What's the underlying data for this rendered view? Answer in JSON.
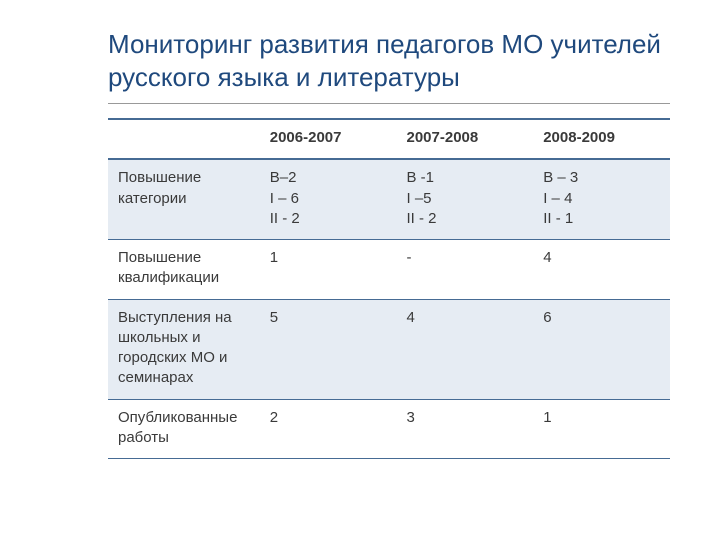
{
  "title": "Мониторинг  развития педагогов МО учителей русского языка и литературы",
  "table": {
    "type": "table",
    "header_border_color": "#466b94",
    "row_border_color": "#466b94",
    "shade_color": "#e6ecf3",
    "background_color": "#ffffff",
    "font_family": "Verdana",
    "cell_fontsize": 15,
    "title_color": "#1f497d",
    "title_fontsize": 26,
    "columns": [
      "",
      "2006-2007",
      "2007-2008",
      "2008-2009"
    ],
    "rows": [
      {
        "shaded": true,
        "label": "Повышение категории",
        "c1": [
          "В–2",
          "I – 6",
          "II - 2"
        ],
        "c2": [
          "В -1",
          "I –5",
          "II - 2"
        ],
        "c3": [
          "В – 3",
          "I – 4",
          "II - 1"
        ]
      },
      {
        "shaded": false,
        "label": "Повышение квалификации",
        "c1": [
          "1"
        ],
        "c2": [
          "-"
        ],
        "c3": [
          "4"
        ]
      },
      {
        "shaded": true,
        "label": "Выступления на школьных и городских МО и семинарах",
        "c1": [
          "5"
        ],
        "c2": [
          "4"
        ],
        "c3": [
          "6"
        ]
      },
      {
        "shaded": false,
        "label": "Опубликованные работы",
        "c1": [
          "2"
        ],
        "c2": [
          "3"
        ],
        "c3": [
          "1"
        ]
      }
    ]
  }
}
